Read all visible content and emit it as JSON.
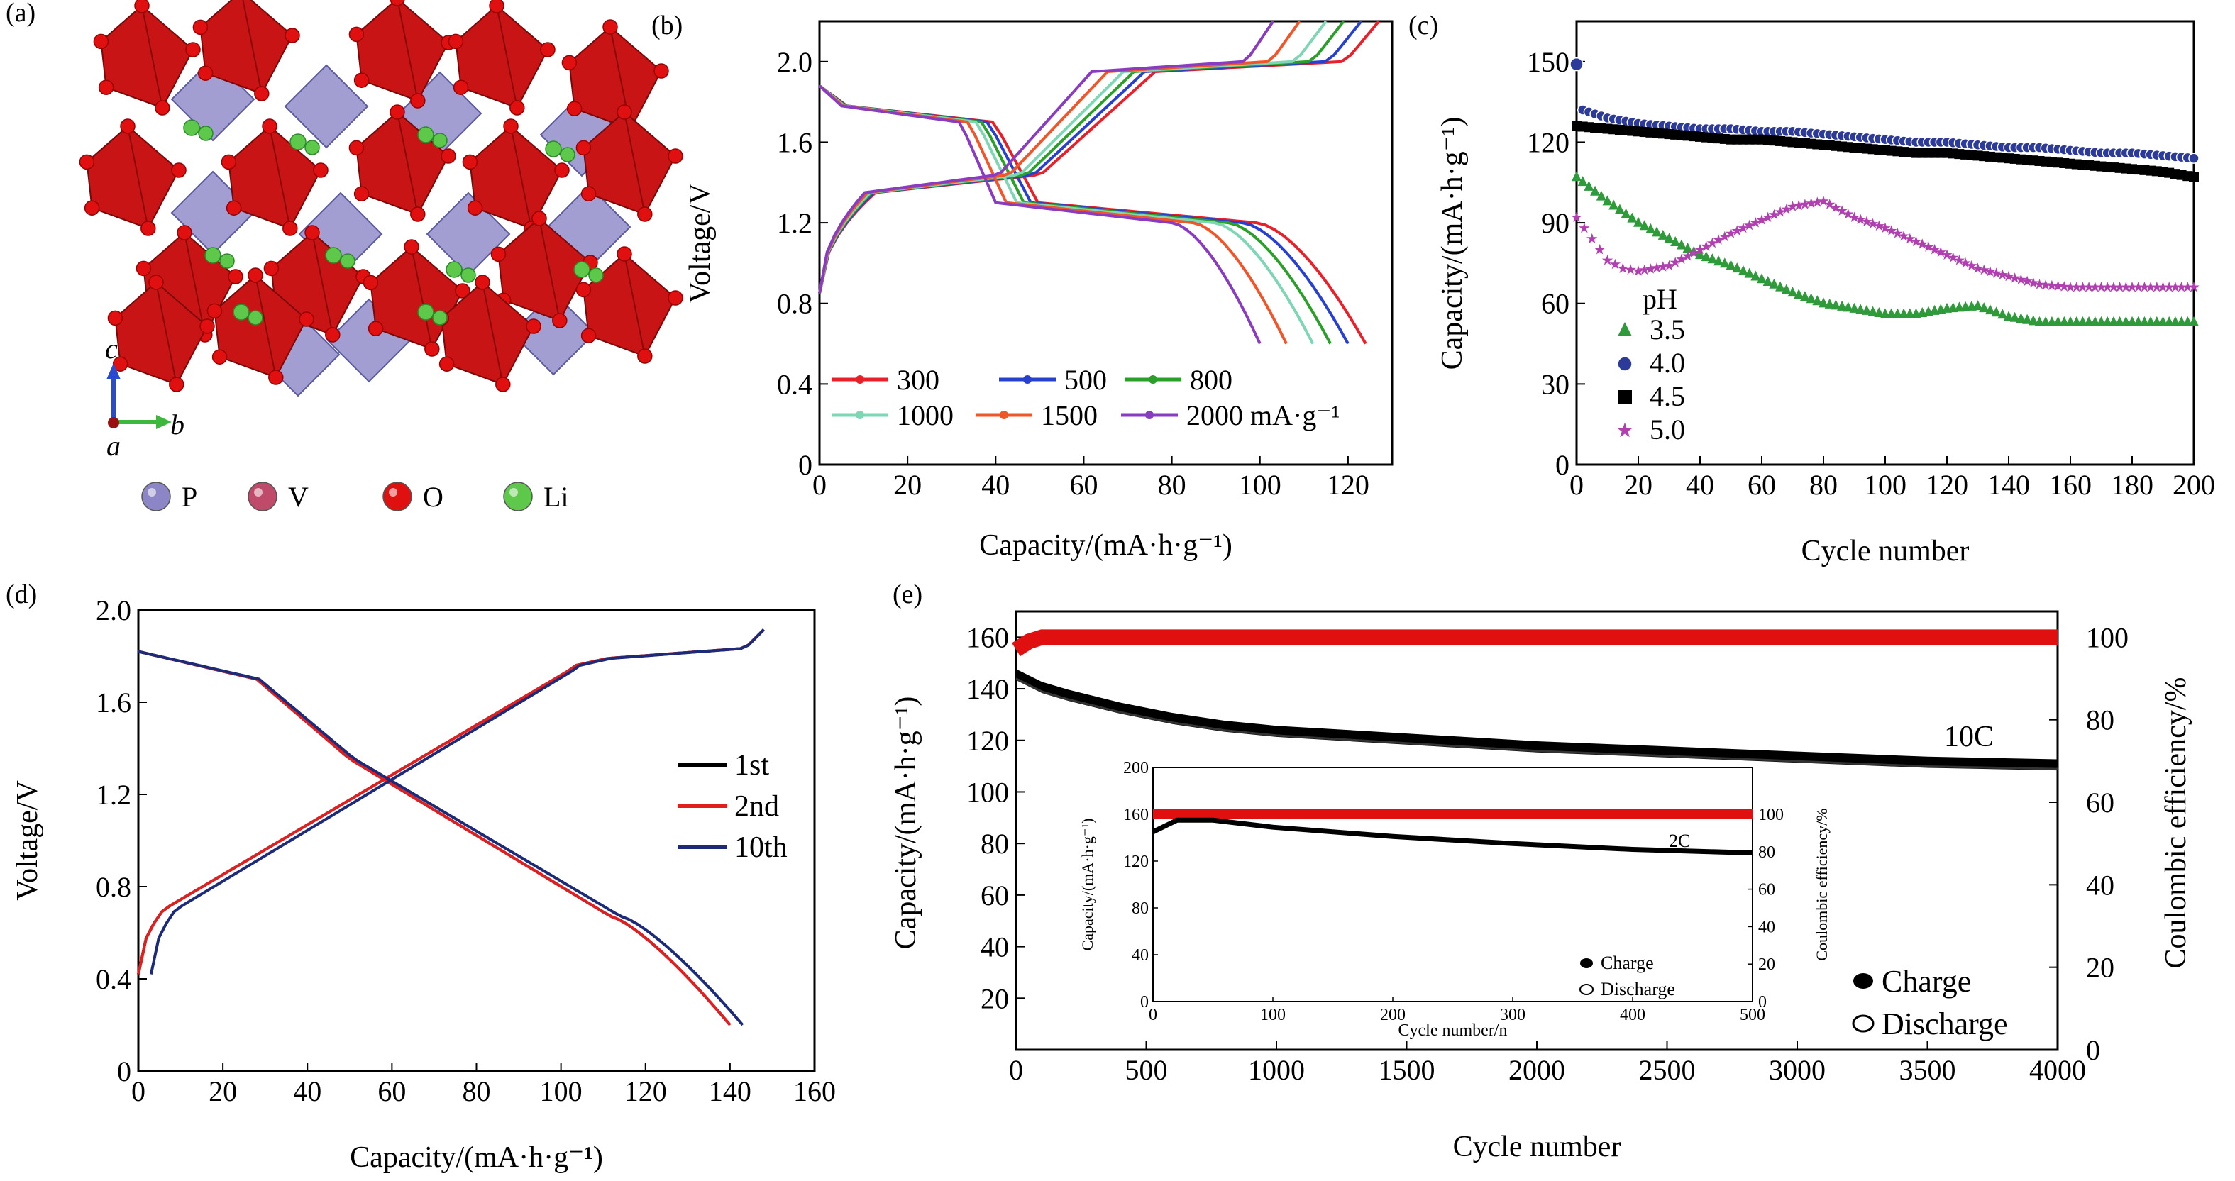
{
  "panels": {
    "a": {
      "label": "(a)",
      "axes": {
        "c": "c",
        "b": "b",
        "a": "a"
      },
      "legend": [
        {
          "name": "P",
          "color": "#8c86c6"
        },
        {
          "name": "V",
          "color": "#c04a6a"
        },
        {
          "name": "O",
          "color": "#e01010"
        },
        {
          "name": "Li",
          "color": "#5ec84a"
        }
      ]
    },
    "b": {
      "label": "(b)"
    },
    "c": {
      "label": "(c)",
      "legend_title": "pH"
    },
    "d": {
      "label": "(d)"
    },
    "e": {
      "label": "(e)",
      "annotation": "10C",
      "inset_annotation": "2C"
    }
  },
  "chart_data": [
    {
      "id": "b",
      "type": "line",
      "xlabel": "Capacity/(mA·h·g⁻¹)",
      "ylabel": "Voltage/V",
      "xlim": [
        0,
        130
      ],
      "ylim": [
        0,
        2.2
      ],
      "xticks": [
        "0",
        "20",
        "40",
        "60",
        "80",
        "100",
        "120"
      ],
      "yticks": [
        "0",
        "0.4",
        "0.8",
        "1.2",
        "1.6",
        "2.0"
      ],
      "legend_placement": "bottom",
      "series": [
        {
          "name": "300",
          "color": "#e8202a",
          "discharge_end": 124
        },
        {
          "name": "500",
          "color": "#2840d0",
          "discharge_end": 120
        },
        {
          "name": "800",
          "color": "#2aa02a",
          "discharge_end": 116
        },
        {
          "name": "1000",
          "color": "#7fd6b4",
          "discharge_end": 112
        },
        {
          "name": "1500",
          "color": "#f0562a",
          "discharge_end": 106
        },
        {
          "name": "2000 mA·g⁻¹",
          "color": "#8a3cc0",
          "discharge_end": 100
        }
      ]
    },
    {
      "id": "c",
      "type": "scatter",
      "xlabel": "Cycle number",
      "ylabel": "Capacity/(mA·h·g⁻¹)",
      "xlim": [
        0,
        200
      ],
      "ylim": [
        0,
        165
      ],
      "xticks": [
        "0",
        "20",
        "40",
        "60",
        "80",
        "100",
        "120",
        "140",
        "160",
        "180",
        "200"
      ],
      "yticks": [
        "0",
        "30",
        "60",
        "90",
        "120",
        "150"
      ],
      "series": [
        {
          "name": "3.5",
          "color": "#2e9a3a",
          "marker": "triangle",
          "points": [
            [
              0,
              107
            ],
            [
              10,
              98
            ],
            [
              20,
              90
            ],
            [
              30,
              84
            ],
            [
              40,
              78
            ],
            [
              50,
              74
            ],
            [
              60,
              69
            ],
            [
              70,
              64
            ],
            [
              80,
              60
            ],
            [
              90,
              58
            ],
            [
              100,
              56
            ],
            [
              110,
              56
            ],
            [
              120,
              58
            ],
            [
              130,
              59
            ],
            [
              140,
              55
            ],
            [
              150,
              53
            ],
            [
              160,
              53
            ],
            [
              170,
              53
            ],
            [
              180,
              53
            ],
            [
              190,
              53
            ],
            [
              200,
              53
            ]
          ]
        },
        {
          "name": "4.0",
          "color": "#2c3a9a",
          "marker": "circle",
          "points": [
            [
              0,
              149
            ],
            [
              2,
              132
            ],
            [
              10,
              129
            ],
            [
              20,
              127
            ],
            [
              30,
              126
            ],
            [
              40,
              125
            ],
            [
              50,
              125
            ],
            [
              60,
              124
            ],
            [
              70,
              124
            ],
            [
              80,
              123
            ],
            [
              90,
              122
            ],
            [
              100,
              121
            ],
            [
              110,
              120
            ],
            [
              120,
              120
            ],
            [
              130,
              119
            ],
            [
              140,
              118
            ],
            [
              150,
              118
            ],
            [
              160,
              117
            ],
            [
              170,
              116
            ],
            [
              180,
              116
            ],
            [
              190,
              115
            ],
            [
              200,
              114
            ]
          ]
        },
        {
          "name": "4.5",
          "color": "#000000",
          "marker": "square",
          "points": [
            [
              0,
              126
            ],
            [
              10,
              125
            ],
            [
              20,
              124
            ],
            [
              30,
              123
            ],
            [
              40,
              122
            ],
            [
              50,
              121
            ],
            [
              60,
              121
            ],
            [
              70,
              120
            ],
            [
              80,
              119
            ],
            [
              90,
              118
            ],
            [
              100,
              117
            ],
            [
              110,
              116
            ],
            [
              120,
              116
            ],
            [
              130,
              115
            ],
            [
              140,
              114
            ],
            [
              150,
              113
            ],
            [
              160,
              112
            ],
            [
              170,
              111
            ],
            [
              180,
              110
            ],
            [
              190,
              109
            ],
            [
              200,
              107
            ]
          ]
        },
        {
          "name": "5.0",
          "color": "#b040b0",
          "marker": "star",
          "points": [
            [
              0,
              92
            ],
            [
              5,
              84
            ],
            [
              10,
              76
            ],
            [
              15,
              73
            ],
            [
              20,
              72
            ],
            [
              30,
              74
            ],
            [
              40,
              80
            ],
            [
              50,
              86
            ],
            [
              60,
              91
            ],
            [
              70,
              96
            ],
            [
              80,
              98
            ],
            [
              90,
              92
            ],
            [
              100,
              88
            ],
            [
              110,
              83
            ],
            [
              120,
              78
            ],
            [
              130,
              73
            ],
            [
              140,
              70
            ],
            [
              150,
              67
            ],
            [
              160,
              66
            ],
            [
              170,
              66
            ],
            [
              180,
              66
            ],
            [
              190,
              66
            ],
            [
              200,
              66
            ]
          ]
        }
      ]
    },
    {
      "id": "d",
      "type": "line",
      "xlabel": "Capacity/(mA·h·g⁻¹)",
      "ylabel": "Voltage/V",
      "xlim": [
        0,
        160
      ],
      "ylim": [
        0,
        2.0
      ],
      "xticks": [
        "0",
        "20",
        "40",
        "60",
        "80",
        "100",
        "120",
        "140",
        "160"
      ],
      "yticks": [
        "0",
        "0.4",
        "0.8",
        "1.2",
        "1.6",
        "2.0"
      ],
      "series": [
        {
          "name": "1st",
          "color": "#000000",
          "discharge_end": 140
        },
        {
          "name": "2nd",
          "color": "#e02020",
          "discharge_end": 140
        },
        {
          "name": "10th",
          "color": "#1c2a7a",
          "discharge_end": 143
        }
      ]
    },
    {
      "id": "e",
      "type": "scatter",
      "xlabel": "Cycle number",
      "ylabel": "Capacity/(mA·h·g⁻¹)",
      "y2label": "Coulombic efficiency/%",
      "xlim": [
        0,
        4000
      ],
      "ylim": [
        0,
        170
      ],
      "y2lim": [
        0,
        106.25
      ],
      "xticks": [
        "0",
        "500",
        "1000",
        "1500",
        "2000",
        "2500",
        "3000",
        "3500",
        "4000"
      ],
      "yticks": [
        "20",
        "40",
        "60",
        "80",
        "100",
        "120",
        "140",
        "160"
      ],
      "y2ticks": [
        "0",
        "20",
        "40",
        "60",
        "80",
        "100"
      ],
      "series": [
        {
          "name": "Charge",
          "color": "#000000",
          "points": [
            [
              0,
              146
            ],
            [
              100,
              141
            ],
            [
              200,
              138
            ],
            [
              400,
              133
            ],
            [
              600,
              129
            ],
            [
              800,
              126
            ],
            [
              1000,
              124
            ],
            [
              1500,
              121
            ],
            [
              2000,
              118
            ],
            [
              2500,
              116
            ],
            [
              3000,
              114
            ],
            [
              3500,
              112
            ],
            [
              4000,
              111
            ]
          ]
        },
        {
          "name": "Discharge",
          "color": "#000000",
          "points": [
            [
              0,
              145
            ],
            [
              100,
              140
            ],
            [
              200,
              137
            ],
            [
              400,
              132
            ],
            [
              600,
              128
            ],
            [
              800,
              125
            ],
            [
              1000,
              123
            ],
            [
              1500,
              120
            ],
            [
              2000,
              117
            ],
            [
              2500,
              115
            ],
            [
              3000,
              113
            ],
            [
              3500,
              111
            ],
            [
              4000,
              110
            ]
          ]
        },
        {
          "name": "Coulombic efficiency",
          "color": "#e01010",
          "points": [
            [
              0,
              97
            ],
            [
              50,
              99
            ],
            [
              100,
              100
            ],
            [
              4000,
              100
            ]
          ]
        }
      ],
      "inset": {
        "xlabel": "Cycle number/n",
        "ylabel": "Capacity/(mA·h·g⁻¹)",
        "y2label": "Coulombic efficiency/%",
        "xlim": [
          0,
          500
        ],
        "ylim": [
          0,
          200
        ],
        "y2lim": [
          0,
          125
        ],
        "xticks": [
          "0",
          "100",
          "200",
          "300",
          "400",
          "500"
        ],
        "yticks": [
          "0",
          "40",
          "80",
          "120",
          "160",
          "200"
        ],
        "y2ticks": [
          "0",
          "20",
          "40",
          "60",
          "80",
          "100"
        ],
        "legend": [
          "Charge",
          "Discharge"
        ],
        "charge_points": [
          [
            0,
            145
          ],
          [
            20,
            155
          ],
          [
            50,
            155
          ],
          [
            100,
            149
          ],
          [
            200,
            141
          ],
          [
            300,
            135
          ],
          [
            400,
            130
          ],
          [
            500,
            127
          ]
        ],
        "ce_points": [
          [
            0,
            100
          ],
          [
            500,
            100
          ]
        ]
      }
    }
  ]
}
